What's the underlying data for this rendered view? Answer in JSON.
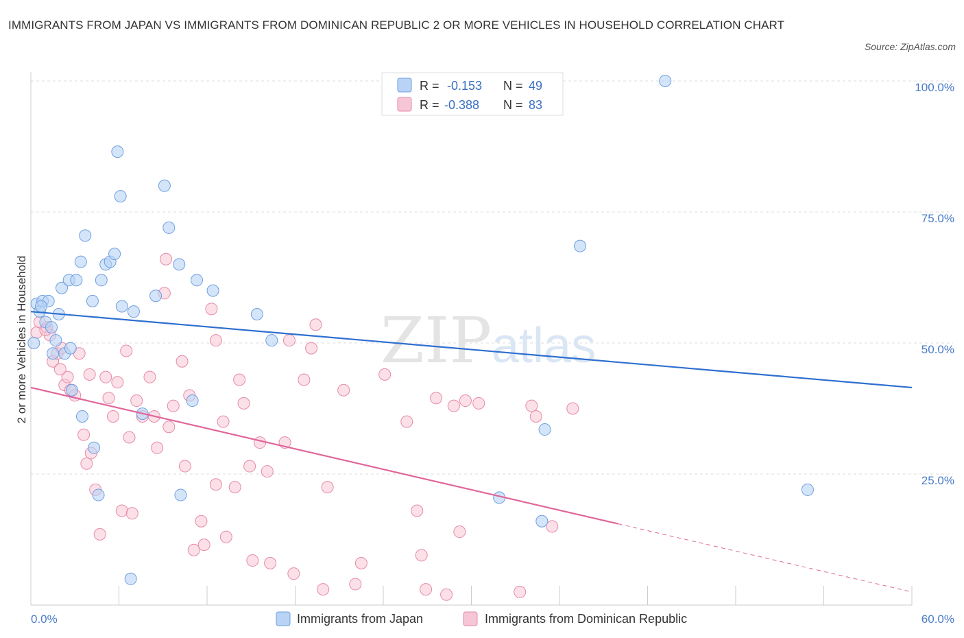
{
  "title": "IMMIGRANTS FROM JAPAN VS IMMIGRANTS FROM DOMINICAN REPUBLIC 2 OR MORE VEHICLES IN HOUSEHOLD CORRELATION CHART",
  "source": "Source: ZipAtlas.com",
  "watermark": {
    "zip": "ZIP",
    "atlas": "atlas"
  },
  "colors": {
    "japan_fill": "#b8d3f5",
    "japan_stroke": "#6f9fe0",
    "japan_line": "#2e6fd0",
    "dr_fill": "#f7c6d6",
    "dr_stroke": "#e68aa8",
    "dr_line": "#e0669a",
    "tick_text": "#4a7cc9",
    "grid": "#dddddd"
  },
  "legend": {
    "japan": {
      "r_label": "R =",
      "r_value": "-0.153",
      "n_label": "N =",
      "n_value": "49"
    },
    "dr": {
      "r_label": "R =",
      "r_value": "-0.388",
      "n_label": "N =",
      "n_value": "83"
    }
  },
  "chart_data": {
    "type": "scatter",
    "xlabel": "",
    "ylabel": "2 or more Vehicles in Household",
    "xlim": [
      0,
      60
    ],
    "ylim": [
      0,
      100
    ],
    "x_tick_labels": [
      "0.0%",
      "60.0%"
    ],
    "y_ticks": [
      25,
      50,
      75,
      100
    ],
    "y_tick_labels": [
      "25.0%",
      "50.0%",
      "75.0%",
      "100.0%"
    ],
    "grid": true,
    "legend_position": "top-center",
    "series": [
      {
        "name": "Immigrants from Japan",
        "trend": {
          "x": [
            0,
            60
          ],
          "y": [
            56,
            41.5
          ]
        },
        "points": [
          [
            0.2,
            50
          ],
          [
            0.4,
            57.5
          ],
          [
            0.6,
            56
          ],
          [
            0.8,
            58
          ],
          [
            1,
            54
          ],
          [
            1.2,
            58
          ],
          [
            1.4,
            53
          ],
          [
            1.7,
            50.5
          ],
          [
            1.9,
            55.5
          ],
          [
            2.1,
            60.5
          ],
          [
            2.3,
            48
          ],
          [
            2.6,
            62
          ],
          [
            2.8,
            41
          ],
          [
            3.1,
            62
          ],
          [
            3.4,
            65.5
          ],
          [
            3.5,
            36
          ],
          [
            3.7,
            70.5
          ],
          [
            4.2,
            58
          ],
          [
            4.3,
            30
          ],
          [
            4.6,
            21
          ],
          [
            4.8,
            62
          ],
          [
            5.1,
            65
          ],
          [
            5.4,
            65.5
          ],
          [
            5.7,
            67
          ],
          [
            5.9,
            86.5
          ],
          [
            6.1,
            78
          ],
          [
            6.2,
            57
          ],
          [
            6.8,
            5
          ],
          [
            7,
            56
          ],
          [
            7.6,
            36.5
          ],
          [
            8.5,
            59
          ],
          [
            9.1,
            80
          ],
          [
            9.4,
            72
          ],
          [
            10.1,
            65
          ],
          [
            10.2,
            21
          ],
          [
            11.3,
            62
          ],
          [
            12.4,
            60
          ],
          [
            15.4,
            55.5
          ],
          [
            16.4,
            50.5
          ],
          [
            34.8,
            16
          ],
          [
            35,
            33.5
          ],
          [
            31.9,
            20.5
          ],
          [
            37.4,
            68.5
          ],
          [
            43.2,
            100
          ],
          [
            52.9,
            22
          ],
          [
            0.7,
            57
          ],
          [
            1.5,
            48
          ],
          [
            2.7,
            49
          ],
          [
            11,
            39
          ]
        ]
      },
      {
        "name": "Immigrants from Dominican Republic",
        "trend": {
          "x": [
            0,
            40
          ],
          "y": [
            41.5,
            15.5
          ]
        },
        "trend_extension": {
          "x": [
            40,
            60
          ],
          "y": [
            15.5,
            2.5
          ]
        },
        "points": [
          [
            0.4,
            52
          ],
          [
            0.6,
            54
          ],
          [
            1.1,
            53
          ],
          [
            1.3,
            51.5
          ],
          [
            1.5,
            46.5
          ],
          [
            1.8,
            48
          ],
          [
            2.1,
            49
          ],
          [
            2.3,
            42
          ],
          [
            2.5,
            43.5
          ],
          [
            2.7,
            41
          ],
          [
            3,
            40
          ],
          [
            3.3,
            48
          ],
          [
            3.6,
            32.5
          ],
          [
            3.8,
            27
          ],
          [
            4.1,
            29
          ],
          [
            4.4,
            22
          ],
          [
            4.7,
            13.5
          ],
          [
            5.1,
            43.5
          ],
          [
            5.3,
            39.5
          ],
          [
            5.6,
            36
          ],
          [
            5.9,
            42.5
          ],
          [
            6.2,
            18
          ],
          [
            6.5,
            48.5
          ],
          [
            6.9,
            17.5
          ],
          [
            7.2,
            39
          ],
          [
            7.6,
            36
          ],
          [
            8.1,
            43.5
          ],
          [
            8.4,
            36
          ],
          [
            8.6,
            30
          ],
          [
            9.1,
            59.5
          ],
          [
            9.4,
            34
          ],
          [
            9.7,
            38
          ],
          [
            10.3,
            46.5
          ],
          [
            10.5,
            26.5
          ],
          [
            10.8,
            40
          ],
          [
            11.1,
            10.5
          ],
          [
            11.6,
            16
          ],
          [
            11.8,
            11.5
          ],
          [
            12.3,
            56.5
          ],
          [
            12.6,
            50.5
          ],
          [
            13.1,
            35
          ],
          [
            13.3,
            13
          ],
          [
            13.9,
            22.5
          ],
          [
            14.2,
            43
          ],
          [
            14.5,
            38.5
          ],
          [
            14.9,
            26.5
          ],
          [
            15.1,
            8.5
          ],
          [
            15.6,
            31
          ],
          [
            16.1,
            25.5
          ],
          [
            16.3,
            8
          ],
          [
            17.3,
            31
          ],
          [
            17.6,
            50.5
          ],
          [
            17.9,
            6
          ],
          [
            18.6,
            43
          ],
          [
            19.1,
            49
          ],
          [
            19.4,
            53.5
          ],
          [
            19.9,
            3
          ],
          [
            20.2,
            22.5
          ],
          [
            21.3,
            41
          ],
          [
            22.1,
            4
          ],
          [
            22.5,
            8
          ],
          [
            24.1,
            44
          ],
          [
            25.6,
            35
          ],
          [
            26.3,
            18
          ],
          [
            26.6,
            9.5
          ],
          [
            26.9,
            3
          ],
          [
            27.6,
            39.5
          ],
          [
            28.3,
            2
          ],
          [
            28.8,
            38
          ],
          [
            29.2,
            14
          ],
          [
            29.6,
            39
          ],
          [
            30.5,
            38.5
          ],
          [
            33.3,
            2.5
          ],
          [
            34.1,
            38
          ],
          [
            34.4,
            36
          ],
          [
            35.5,
            15
          ],
          [
            36.9,
            37.5
          ],
          [
            1,
            52.5
          ],
          [
            2,
            45
          ],
          [
            4,
            44
          ],
          [
            6.7,
            32
          ],
          [
            9.2,
            66
          ],
          [
            12.6,
            23
          ]
        ]
      }
    ]
  },
  "bottom_legend": [
    {
      "label": "Immigrants from Japan"
    },
    {
      "label": "Immigrants from Dominican Republic"
    }
  ]
}
